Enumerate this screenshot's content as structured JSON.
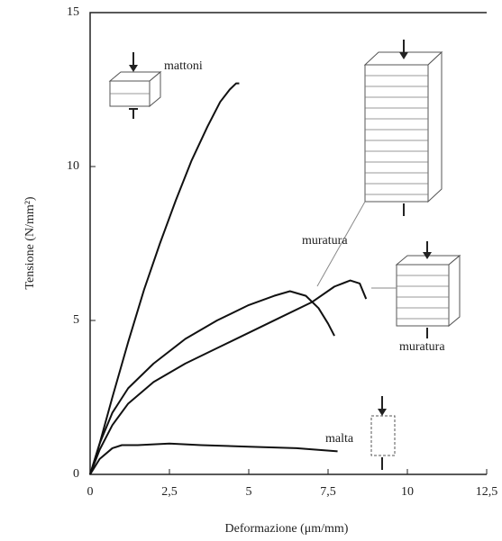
{
  "chart_data": {
    "type": "line",
    "x_label": "Deformazione (μm/mm)",
    "y_label": "Tensione (N/mm²)",
    "xlim": [
      0,
      12.5
    ],
    "xticks": [
      0,
      {
        "value": 2.5,
        "label": "2,5"
      },
      5,
      {
        "value": 7.5,
        "label": "7,5"
      },
      10,
      {
        "value": 12.5,
        "label": "12,5"
      }
    ],
    "ylim": [
      0,
      15
    ],
    "yticks": [
      0,
      5,
      10,
      15
    ],
    "series": [
      {
        "name": "mattoni",
        "color": "#111111",
        "x": [
          0,
          0.3,
          0.7,
          1.2,
          1.7,
          2.2,
          2.7,
          3.2,
          3.7,
          4.1,
          4.4,
          4.6,
          4.7
        ],
        "values": [
          0,
          1.0,
          2.5,
          4.3,
          6.0,
          7.5,
          8.9,
          10.2,
          11.3,
          12.1,
          12.5,
          12.7,
          12.7
        ]
      },
      {
        "name": "muratura",
        "color": "#111111",
        "x": [
          0,
          0.3,
          0.7,
          1.2,
          2,
          3,
          4,
          5,
          5.8,
          6.3,
          6.8,
          7.2,
          7.5,
          7.7
        ],
        "values": [
          0,
          1.0,
          2.0,
          2.8,
          3.6,
          4.4,
          5.0,
          5.5,
          5.8,
          5.95,
          5.8,
          5.4,
          4.9,
          4.5
        ]
      },
      {
        "name": "muratura",
        "color": "#111111",
        "x": [
          0,
          0.3,
          0.7,
          1.2,
          2,
          3,
          4,
          5,
          6,
          7,
          7.7,
          8.2,
          8.5,
          8.7
        ],
        "values": [
          0,
          0.8,
          1.6,
          2.3,
          3.0,
          3.6,
          4.1,
          4.6,
          5.1,
          5.6,
          6.1,
          6.3,
          6.2,
          5.7
        ]
      },
      {
        "name": "malta",
        "color": "#111111",
        "x": [
          0,
          0.3,
          0.7,
          1,
          1.5,
          2.5,
          3.5,
          5,
          6.5,
          7.8
        ],
        "values": [
          0,
          0.5,
          0.85,
          0.95,
          0.95,
          1.0,
          0.95,
          0.9,
          0.85,
          0.75
        ]
      }
    ]
  }
}
